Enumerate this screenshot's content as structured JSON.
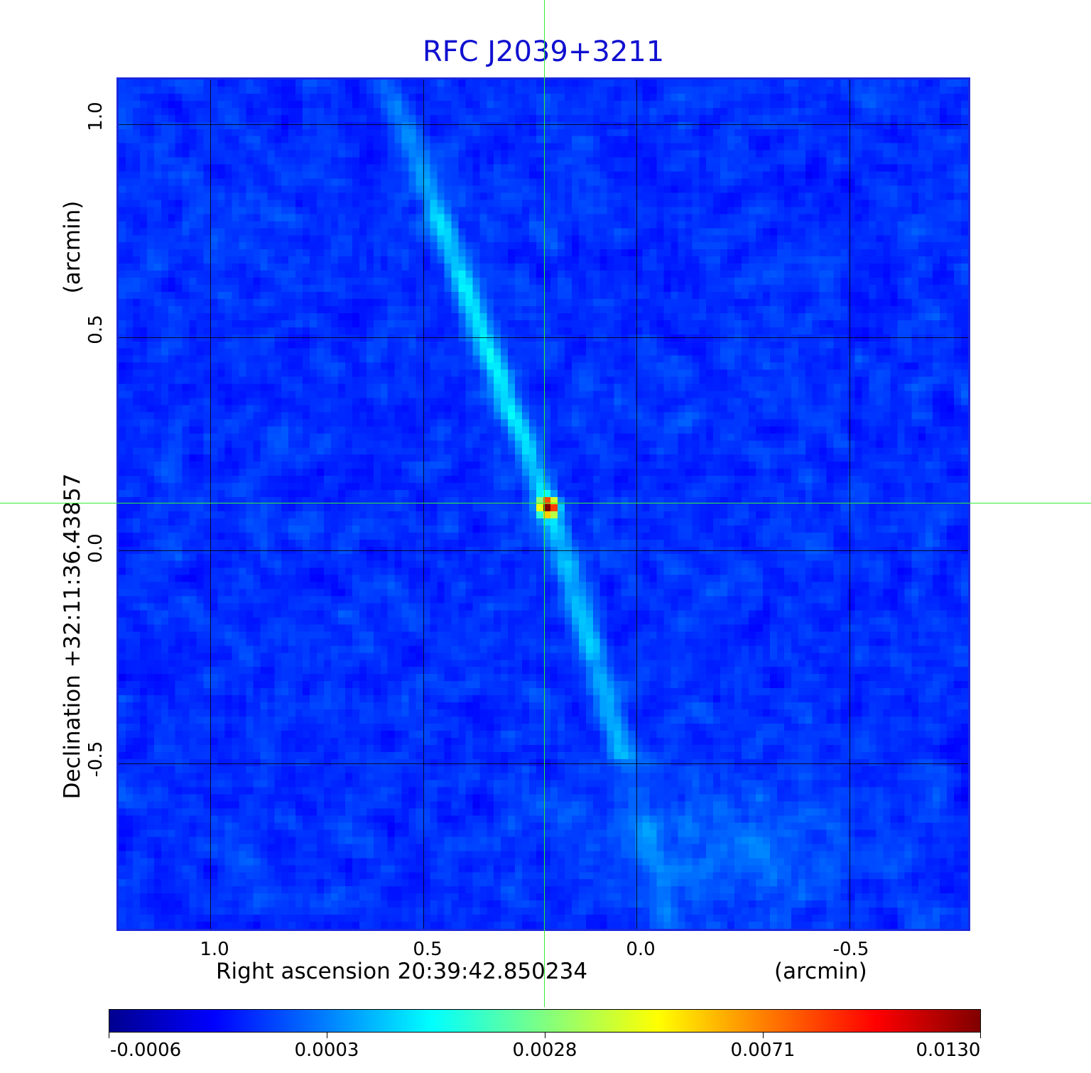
{
  "title": "RFC J2039+3211",
  "x_axis": {
    "label": "Right ascension  20:39:42.850234",
    "unit": "(arcmin)",
    "ticks": [
      "1.0",
      "0.5",
      "0.0",
      "-0.5"
    ]
  },
  "y_axis": {
    "label": "Declination  +32:11:36.43857",
    "unit": "(arcmin)",
    "ticks": [
      "1.0",
      "0.5",
      "0.0",
      "-0.5"
    ]
  },
  "colorbar": {
    "ticks": [
      "-0.0006",
      "0.0003",
      "0.0028",
      "0.0071",
      "0.0130"
    ],
    "colormap": "jet"
  },
  "colors": {
    "title": "#1010d0",
    "frame": "#1a28e0",
    "crosshair": "#33ee33"
  }
}
